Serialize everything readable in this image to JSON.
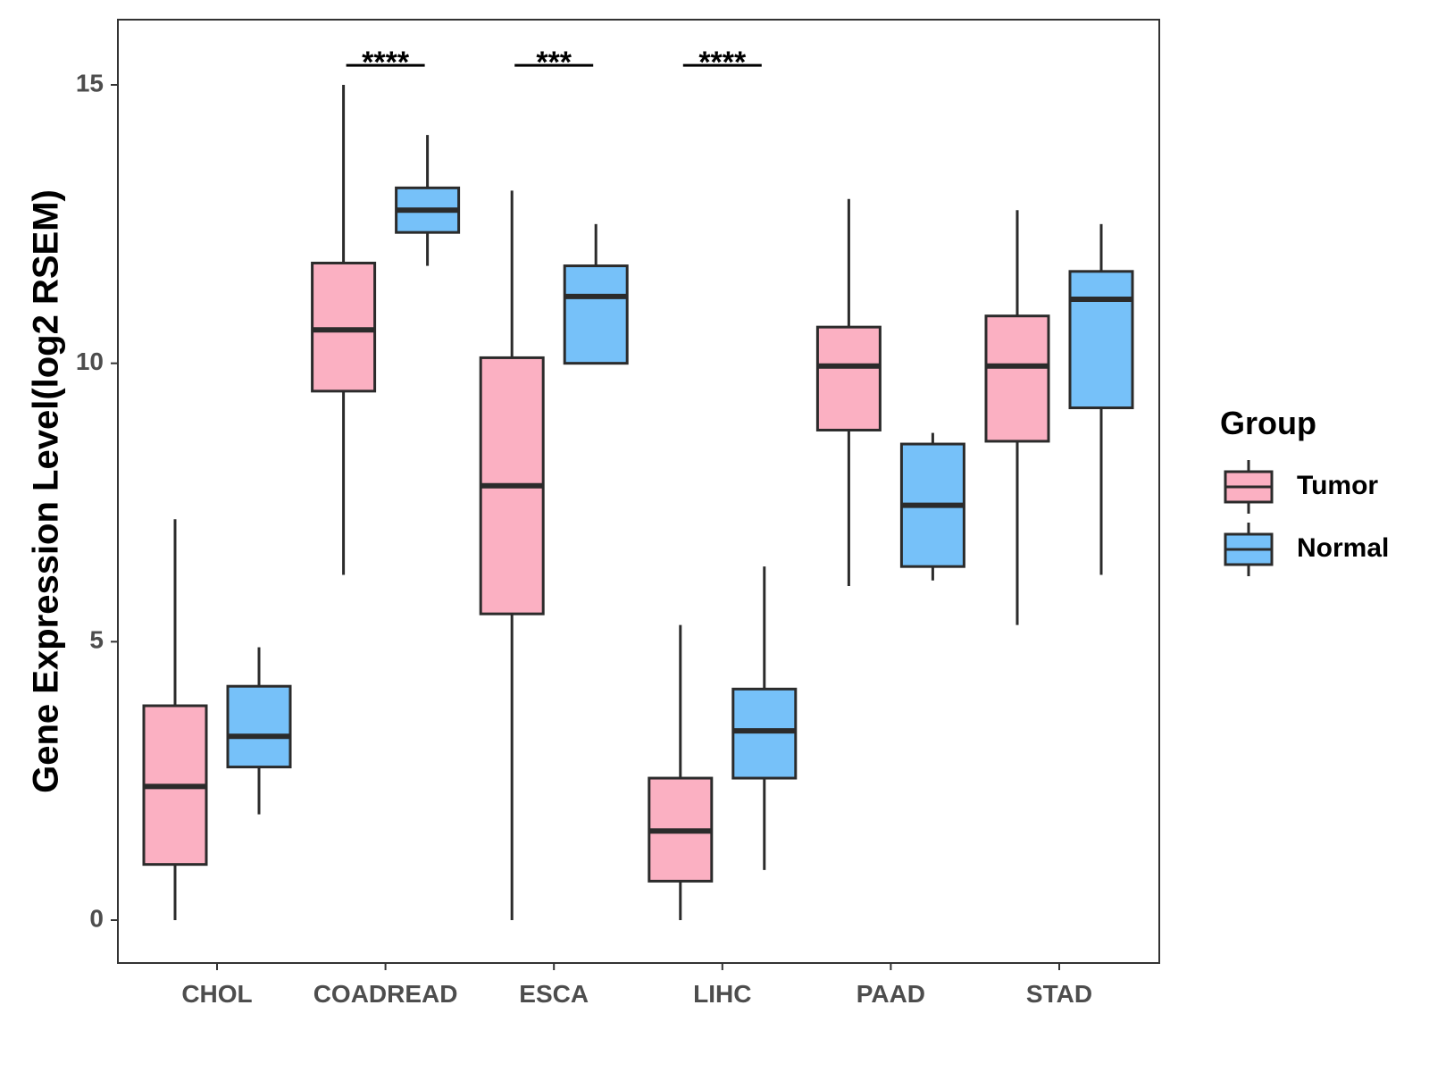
{
  "chart_data": {
    "type": "box",
    "title": "",
    "xlabel": "",
    "ylabel": "Gene Expression Level(log2 RSEM)",
    "ylim": [
      -0.75,
      16.2
    ],
    "yticks": [
      0,
      5,
      10,
      15
    ],
    "grid": false,
    "legend_position": "right",
    "categories": [
      "CHOL",
      "COADREAD",
      "ESCA",
      "LIHC",
      "PAAD",
      "STAD"
    ],
    "legend": {
      "title": "Group"
    },
    "series": [
      {
        "name": "Tumor",
        "color": "#FBB0C2",
        "boxes": [
          {
            "min": 0.0,
            "q1": 1.0,
            "median": 2.4,
            "q3": 3.85,
            "max": 7.2
          },
          {
            "min": 6.2,
            "q1": 9.5,
            "median": 10.6,
            "q3": 11.8,
            "max": 15.0
          },
          {
            "min": 0.0,
            "q1": 5.5,
            "median": 7.8,
            "q3": 10.1,
            "max": 13.1
          },
          {
            "min": 0.0,
            "q1": 0.7,
            "median": 1.6,
            "q3": 2.55,
            "max": 5.3
          },
          {
            "min": 6.0,
            "q1": 8.8,
            "median": 9.95,
            "q3": 10.65,
            "max": 12.95
          },
          {
            "min": 5.3,
            "q1": 8.6,
            "median": 9.95,
            "q3": 10.85,
            "max": 12.75
          }
        ]
      },
      {
        "name": "Normal",
        "color": "#76C1F9",
        "boxes": [
          {
            "min": 1.9,
            "q1": 2.75,
            "median": 3.3,
            "q3": 4.2,
            "max": 4.9
          },
          {
            "min": 11.75,
            "q1": 12.35,
            "median": 12.75,
            "q3": 13.15,
            "max": 14.1
          },
          {
            "min": 10.0,
            "q1": 10.0,
            "median": 11.2,
            "q3": 11.75,
            "max": 12.5
          },
          {
            "min": 0.9,
            "q1": 2.55,
            "median": 3.4,
            "q3": 4.15,
            "max": 6.35
          },
          {
            "min": 6.1,
            "q1": 6.35,
            "median": 7.45,
            "q3": 8.55,
            "max": 8.75
          },
          {
            "min": 6.2,
            "q1": 9.2,
            "median": 11.15,
            "q3": 11.65,
            "max": 12.5
          }
        ]
      }
    ],
    "annotations": [
      {
        "category": "COADREAD",
        "label": "****",
        "y": 15.35
      },
      {
        "category": "ESCA",
        "label": "***",
        "y": 15.35
      },
      {
        "category": "LIHC",
        "label": "****",
        "y": 15.35
      }
    ]
  }
}
